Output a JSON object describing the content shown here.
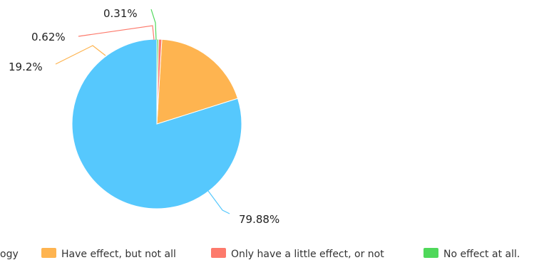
{
  "chart_data": {
    "type": "pie",
    "title": "",
    "slices": [
      {
        "label": "Effective with the technology",
        "value": 79.88,
        "display": "79.88%",
        "color": "#56c8fd"
      },
      {
        "label": "Have effect, but not all",
        "value": 19.2,
        "display": "19.2%",
        "color": "#feb450"
      },
      {
        "label": "Only have a little effect, or not",
        "value": 0.62,
        "display": "0.62%",
        "color": "#fd7a6c"
      },
      {
        "label": "No effect at all.",
        "value": 0.31,
        "display": "0.31%",
        "color": "#4fd85a"
      }
    ],
    "legend": {
      "position": "bottom",
      "first_entry_visible_text": "ogy"
    }
  }
}
